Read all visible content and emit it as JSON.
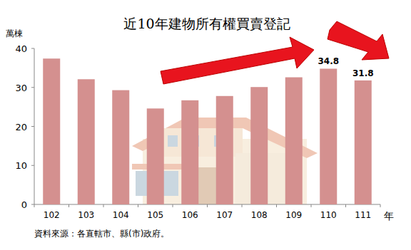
{
  "chart_data": {
    "type": "bar",
    "title": "近10年建物所有權買賣登記",
    "y_label": "萬棟",
    "x_label": "年",
    "source": "資料來源：各直轄市、縣(市)政府。",
    "categories": [
      "102",
      "103",
      "104",
      "105",
      "106",
      "107",
      "108",
      "109",
      "110",
      "111"
    ],
    "values": [
      37.4,
      32.1,
      29.3,
      24.6,
      26.7,
      27.8,
      30.1,
      32.6,
      34.8,
      31.8
    ],
    "value_labels": [
      null,
      null,
      null,
      null,
      null,
      null,
      null,
      null,
      "34.8",
      "31.8"
    ],
    "data_labels": true,
    "color": "#d4908f",
    "ylim": [
      0,
      40
    ],
    "yticks": [
      0,
      10,
      20,
      30,
      40
    ],
    "grid": false
  }
}
